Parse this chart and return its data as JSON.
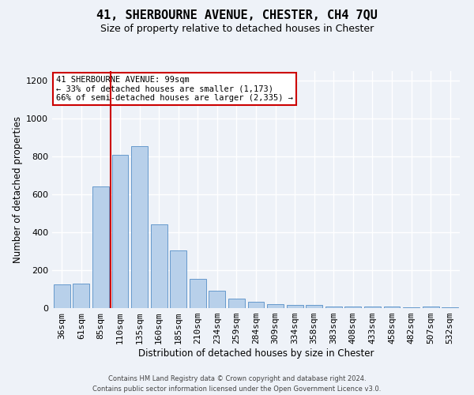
{
  "title": "41, SHERBOURNE AVENUE, CHESTER, CH4 7QU",
  "subtitle": "Size of property relative to detached houses in Chester",
  "xlabel": "Distribution of detached houses by size in Chester",
  "ylabel": "Number of detached properties",
  "footer_line1": "Contains HM Land Registry data © Crown copyright and database right 2024.",
  "footer_line2": "Contains public sector information licensed under the Open Government Licence v3.0.",
  "annotation_title": "41 SHERBOURNE AVENUE: 99sqm",
  "annotation_line1": "← 33% of detached houses are smaller (1,173)",
  "annotation_line2": "66% of semi-detached houses are larger (2,335) →",
  "categories": [
    "36sqm",
    "61sqm",
    "85sqm",
    "110sqm",
    "135sqm",
    "160sqm",
    "185sqm",
    "210sqm",
    "234sqm",
    "259sqm",
    "284sqm",
    "309sqm",
    "334sqm",
    "358sqm",
    "383sqm",
    "408sqm",
    "433sqm",
    "458sqm",
    "482sqm",
    "507sqm",
    "532sqm"
  ],
  "bar_values": [
    125,
    130,
    640,
    810,
    855,
    440,
    305,
    155,
    90,
    50,
    35,
    20,
    15,
    15,
    10,
    10,
    8,
    8,
    5,
    8,
    5
  ],
  "bar_color": "#b8d0ea",
  "bar_edge_color": "#6699cc",
  "redline_color": "#cc0000",
  "annotation_box_color": "#cc0000",
  "background_color": "#eef2f8",
  "ylim": [
    0,
    1250
  ],
  "yticks": [
    0,
    200,
    400,
    600,
    800,
    1000,
    1200
  ],
  "grid_color": "#ffffff",
  "title_fontsize": 11,
  "subtitle_fontsize": 9,
  "xlabel_fontsize": 8.5,
  "ylabel_fontsize": 8.5,
  "tick_fontsize": 8,
  "annotation_fontsize": 7.5,
  "footer_fontsize": 6
}
